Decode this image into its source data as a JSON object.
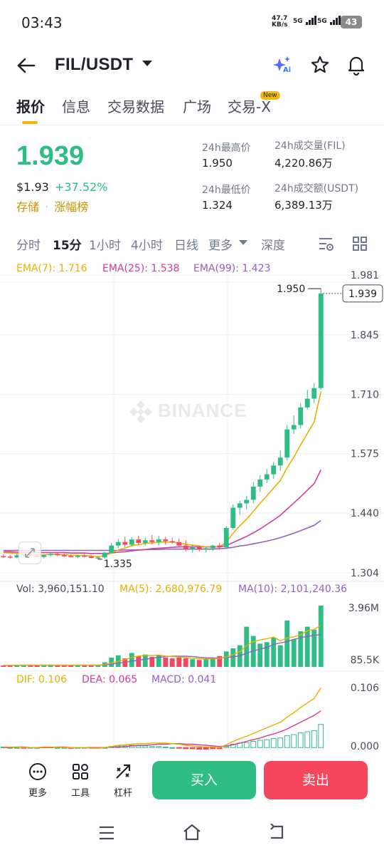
{
  "status_bar": {
    "time": "03:43",
    "net_speed_value": "47.7",
    "net_speed_unit": "KB/s",
    "sim1": "5G",
    "sim2": "5G",
    "battery": "43"
  },
  "header": {
    "back_icon": "arrow-left-icon",
    "pair": "FIL/USDT",
    "ai_icon": "ai-sparkle-icon",
    "ai_label": "Ai",
    "star_icon": "star-outline-icon",
    "bell_icon": "bell-icon"
  },
  "tabs": [
    {
      "label": "报价",
      "active": true
    },
    {
      "label": "信息",
      "active": false
    },
    {
      "label": "交易数据",
      "active": false
    },
    {
      "label": "广场",
      "active": false
    },
    {
      "label": "交易-X",
      "active": false
    }
  ],
  "new_badge": "New",
  "ticker": {
    "price": "1.939",
    "usd_price": "$1.93",
    "change_pct": "+37.52%",
    "link_earn": "存储",
    "link_sep": "·",
    "link_gainers": "涨幅榜",
    "high_label": "24h最高价",
    "high_value": "1.950",
    "low_label": "24h最低价",
    "low_value": "1.324",
    "vol_base_label": "24h成交量(FIL)",
    "vol_base_value": "4,220.86万",
    "vol_quote_label": "24h成交额(USDT)",
    "vol_quote_value": "6,389.13万"
  },
  "intervals": [
    {
      "label": "分时",
      "active": false
    },
    {
      "label": "15分",
      "active": true
    },
    {
      "label": "1小时",
      "active": false
    },
    {
      "label": "4小时",
      "active": false
    },
    {
      "label": "日线",
      "active": false
    },
    {
      "label": "更多",
      "active": false
    },
    {
      "label": "深度",
      "active": false
    }
  ],
  "chart_icons": {
    "settings": "chart-settings-icon",
    "layout": "grid-layout-icon",
    "expand": "expand-icon",
    "watermark": "binance-logo-icon"
  },
  "colors": {
    "up": "#2ebd85",
    "down": "#f6465d",
    "accent": "#f0b90b",
    "ema7": "#e6b000",
    "ema25": "#d63a9a",
    "ema99": "#9460c4"
  },
  "chart_data": [
    {
      "type": "candlestick",
      "title": "FIL/USDT 15分",
      "indicators": [
        {
          "name": "EMA(7)",
          "value": "1.716"
        },
        {
          "name": "EMA(25)",
          "value": "1.538"
        },
        {
          "name": "EMA(99)",
          "value": "1.423"
        }
      ],
      "watermark": "BINANCE",
      "y_ticks": [
        "1.981",
        "1.845",
        "1.710",
        "1.575",
        "1.440",
        "1.304"
      ],
      "ylim": [
        1.304,
        1.981
      ],
      "last_price": "1.939",
      "high_marker": "1.950",
      "low_marker": "1.335",
      "candles": [
        [
          1.342,
          1.346,
          1.338,
          1.341
        ],
        [
          1.341,
          1.345,
          1.336,
          1.339
        ],
        [
          1.339,
          1.347,
          1.337,
          1.344
        ],
        [
          1.344,
          1.35,
          1.34,
          1.346
        ],
        [
          1.346,
          1.349,
          1.341,
          1.343
        ],
        [
          1.343,
          1.347,
          1.339,
          1.34
        ],
        [
          1.34,
          1.346,
          1.337,
          1.344
        ],
        [
          1.344,
          1.351,
          1.341,
          1.347
        ],
        [
          1.347,
          1.35,
          1.342,
          1.344
        ],
        [
          1.344,
          1.348,
          1.34,
          1.342
        ],
        [
          1.342,
          1.346,
          1.339,
          1.34
        ],
        [
          1.34,
          1.344,
          1.337,
          1.343
        ],
        [
          1.343,
          1.347,
          1.339,
          1.341
        ],
        [
          1.341,
          1.344,
          1.337,
          1.338
        ],
        [
          1.338,
          1.342,
          1.335,
          1.339
        ],
        [
          1.339,
          1.352,
          1.336,
          1.35
        ],
        [
          1.35,
          1.372,
          1.348,
          1.366
        ],
        [
          1.366,
          1.381,
          1.36,
          1.374
        ],
        [
          1.374,
          1.386,
          1.362,
          1.368
        ],
        [
          1.368,
          1.385,
          1.364,
          1.38
        ],
        [
          1.38,
          1.388,
          1.368,
          1.372
        ],
        [
          1.372,
          1.384,
          1.366,
          1.378
        ],
        [
          1.378,
          1.39,
          1.37,
          1.374
        ],
        [
          1.374,
          1.388,
          1.366,
          1.38
        ],
        [
          1.38,
          1.386,
          1.368,
          1.376
        ],
        [
          1.376,
          1.384,
          1.37,
          1.374
        ],
        [
          1.374,
          1.382,
          1.362,
          1.366
        ],
        [
          1.366,
          1.378,
          1.352,
          1.358
        ],
        [
          1.358,
          1.368,
          1.35,
          1.362
        ],
        [
          1.362,
          1.366,
          1.352,
          1.358
        ],
        [
          1.358,
          1.364,
          1.35,
          1.36
        ],
        [
          1.36,
          1.368,
          1.354,
          1.366
        ],
        [
          1.366,
          1.372,
          1.356,
          1.362
        ],
        [
          1.362,
          1.41,
          1.36,
          1.406
        ],
        [
          1.406,
          1.46,
          1.402,
          1.452
        ],
        [
          1.452,
          1.468,
          1.436,
          1.462
        ],
        [
          1.462,
          1.478,
          1.448,
          1.47
        ],
        [
          1.47,
          1.51,
          1.462,
          1.5
        ],
        [
          1.5,
          1.526,
          1.488,
          1.516
        ],
        [
          1.516,
          1.54,
          1.508,
          1.528
        ],
        [
          1.528,
          1.556,
          1.518,
          1.548
        ],
        [
          1.548,
          1.582,
          1.536,
          1.566
        ],
        [
          1.566,
          1.64,
          1.56,
          1.63
        ],
        [
          1.63,
          1.662,
          1.62,
          1.64
        ],
        [
          1.64,
          1.69,
          1.632,
          1.68
        ],
        [
          1.68,
          1.72,
          1.676,
          1.7
        ],
        [
          1.7,
          1.735,
          1.69,
          1.724
        ],
        [
          1.724,
          1.95,
          1.72,
          1.939
        ]
      ],
      "ema7": [
        1.35,
        1.349,
        1.348,
        1.347,
        1.346,
        1.345,
        1.345,
        1.346,
        1.346,
        1.345,
        1.344,
        1.344,
        1.343,
        1.342,
        1.341,
        1.343,
        1.349,
        1.356,
        1.36,
        1.366,
        1.368,
        1.371,
        1.372,
        1.374,
        1.374,
        1.374,
        1.372,
        1.369,
        1.367,
        1.365,
        1.363,
        1.364,
        1.363,
        1.374,
        1.394,
        1.411,
        1.426,
        1.444,
        1.462,
        1.479,
        1.497,
        1.514,
        1.543,
        1.567,
        1.595,
        1.621,
        1.647,
        1.716
      ],
      "ema25": [
        1.352,
        1.352,
        1.351,
        1.351,
        1.35,
        1.35,
        1.35,
        1.35,
        1.35,
        1.35,
        1.349,
        1.349,
        1.349,
        1.348,
        1.348,
        1.348,
        1.349,
        1.351,
        1.352,
        1.354,
        1.356,
        1.357,
        1.359,
        1.36,
        1.361,
        1.362,
        1.363,
        1.363,
        1.363,
        1.363,
        1.363,
        1.363,
        1.363,
        1.366,
        1.373,
        1.38,
        1.387,
        1.395,
        1.404,
        1.414,
        1.424,
        1.435,
        1.449,
        1.463,
        1.477,
        1.492,
        1.507,
        1.538
      ],
      "ema99": [
        1.355,
        1.355,
        1.355,
        1.355,
        1.355,
        1.355,
        1.355,
        1.355,
        1.355,
        1.355,
        1.355,
        1.355,
        1.355,
        1.355,
        1.355,
        1.355,
        1.355,
        1.355,
        1.356,
        1.356,
        1.356,
        1.357,
        1.357,
        1.357,
        1.358,
        1.358,
        1.358,
        1.358,
        1.358,
        1.358,
        1.358,
        1.358,
        1.359,
        1.36,
        1.362,
        1.365,
        1.367,
        1.37,
        1.373,
        1.376,
        1.38,
        1.384,
        1.389,
        1.394,
        1.4,
        1.406,
        1.412,
        1.423
      ]
    },
    {
      "type": "bar",
      "title": "Vol",
      "indicators": [
        {
          "name": "Vol",
          "value": "3,960,151.10"
        },
        {
          "name": "MA(5)",
          "value": "2,680,976.79"
        },
        {
          "name": "MA(10)",
          "value": "2,101,240.36"
        }
      ],
      "y_ticks": [
        "3.96M",
        "85.5K"
      ],
      "ylim": [
        0,
        3.96
      ],
      "values_m": [
        0.09,
        0.12,
        0.1,
        0.14,
        0.11,
        0.09,
        0.12,
        0.15,
        0.11,
        0.1,
        0.12,
        0.09,
        0.1,
        0.13,
        0.12,
        0.3,
        0.6,
        0.75,
        0.55,
        0.9,
        0.7,
        0.8,
        0.65,
        0.75,
        0.6,
        0.55,
        0.6,
        0.55,
        0.5,
        0.45,
        0.5,
        0.6,
        0.7,
        1.0,
        1.2,
        1.4,
        2.6,
        2.0,
        1.5,
        1.6,
        1.9,
        1.4,
        3.0,
        1.8,
        2.3,
        2.6,
        2.4,
        3.96
      ],
      "ma5_m": [
        0.1,
        0.1,
        0.11,
        0.11,
        0.11,
        0.11,
        0.11,
        0.11,
        0.11,
        0.11,
        0.11,
        0.11,
        0.11,
        0.11,
        0.11,
        0.15,
        0.25,
        0.37,
        0.46,
        0.62,
        0.7,
        0.74,
        0.73,
        0.77,
        0.7,
        0.67,
        0.63,
        0.61,
        0.56,
        0.53,
        0.52,
        0.52,
        0.55,
        0.65,
        0.8,
        0.98,
        1.38,
        1.64,
        1.74,
        1.82,
        1.92,
        1.68,
        1.88,
        1.94,
        2.08,
        2.34,
        2.42,
        2.68
      ],
      "ma10_m": [
        0.1,
        0.1,
        0.1,
        0.11,
        0.11,
        0.11,
        0.11,
        0.11,
        0.11,
        0.11,
        0.11,
        0.11,
        0.11,
        0.11,
        0.11,
        0.13,
        0.18,
        0.24,
        0.29,
        0.37,
        0.43,
        0.5,
        0.55,
        0.62,
        0.66,
        0.69,
        0.69,
        0.69,
        0.67,
        0.62,
        0.59,
        0.58,
        0.58,
        0.61,
        0.65,
        0.72,
        0.89,
        1.04,
        1.15,
        1.26,
        1.45,
        1.55,
        1.63,
        1.78,
        1.89,
        1.98,
        2.03,
        2.1
      ]
    },
    {
      "type": "bar",
      "title": "MACD",
      "indicators": [
        {
          "name": "DIF",
          "value": "0.106"
        },
        {
          "name": "DEA",
          "value": "0.065"
        },
        {
          "name": "MACD",
          "value": "0.041"
        }
      ],
      "y_ticks": [
        "0.106",
        "0.000"
      ],
      "ylim": [
        -0.006,
        0.11
      ],
      "macd": [
        0.001,
        0.0,
        0.0,
        -0.001,
        0.0,
        0.0,
        0.001,
        0.001,
        0.0,
        0.0,
        -0.001,
        0.0,
        0.0,
        -0.001,
        -0.001,
        0.0,
        0.002,
        0.003,
        0.003,
        0.004,
        0.003,
        0.003,
        0.002,
        0.002,
        0.001,
        0.0,
        -0.001,
        -0.002,
        -0.002,
        -0.003,
        -0.003,
        -0.002,
        -0.002,
        0.002,
        0.006,
        0.008,
        0.009,
        0.011,
        0.013,
        0.014,
        0.016,
        0.017,
        0.021,
        0.023,
        0.026,
        0.028,
        0.03,
        0.041
      ],
      "dif": [
        0.001,
        0.001,
        0.001,
        0.0,
        0.0,
        0.0,
        0.001,
        0.001,
        0.001,
        0.0,
        0.0,
        0.0,
        0.0,
        -0.001,
        -0.001,
        0.0,
        0.002,
        0.004,
        0.005,
        0.006,
        0.007,
        0.007,
        0.008,
        0.008,
        0.008,
        0.007,
        0.006,
        0.004,
        0.003,
        0.002,
        0.001,
        0.001,
        0.0,
        0.005,
        0.011,
        0.016,
        0.02,
        0.025,
        0.03,
        0.035,
        0.04,
        0.045,
        0.054,
        0.062,
        0.071,
        0.079,
        0.087,
        0.106
      ],
      "dea": [
        0.0,
        0.0,
        0.001,
        0.001,
        0.0,
        0.0,
        0.0,
        0.0,
        0.001,
        0.001,
        0.0,
        0.0,
        0.0,
        0.0,
        0.0,
        0.0,
        0.001,
        0.001,
        0.002,
        0.003,
        0.004,
        0.004,
        0.005,
        0.006,
        0.006,
        0.007,
        0.007,
        0.006,
        0.006,
        0.005,
        0.004,
        0.003,
        0.002,
        0.003,
        0.005,
        0.008,
        0.011,
        0.014,
        0.017,
        0.021,
        0.024,
        0.028,
        0.033,
        0.039,
        0.045,
        0.051,
        0.057,
        0.065
      ]
    }
  ],
  "bottom_bar": {
    "more_label": "更多",
    "more_icon": "more-dots-icon",
    "tools_label": "工具",
    "tools_icon": "tools-grid-icon",
    "leverage_label": "杠杆",
    "leverage_icon": "leverage-icon",
    "buy_label": "买入",
    "sell_label": "卖出"
  },
  "nav": {
    "menu_icon": "menu-icon",
    "home_icon": "home-icon",
    "back_icon": "back-icon"
  }
}
